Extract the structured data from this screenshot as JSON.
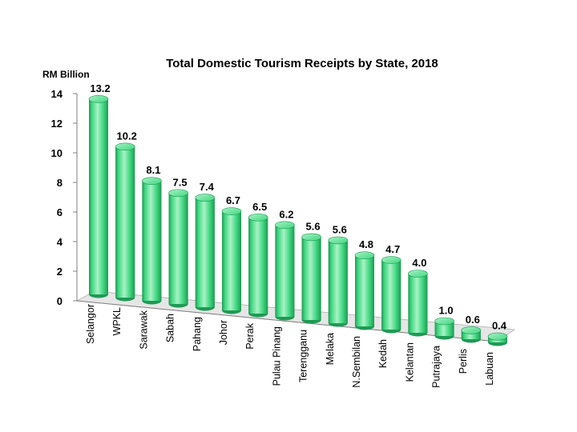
{
  "chart_data": {
    "type": "bar",
    "title": "Total Domestic Tourism Receipts by State, 2018",
    "ylabel": "RM Billion",
    "xlabel": "",
    "ylim": [
      0,
      14
    ],
    "yticks": [
      "0",
      "2",
      "4",
      "6",
      "8",
      "10",
      "12",
      "14"
    ],
    "categories": [
      "Selangor",
      "WPKL",
      "Sarawak",
      "Sabah",
      "Pahang",
      "Johor",
      "Perak",
      "Pulau Pinang",
      "Terengganu",
      "Melaka",
      "N.Sembilan",
      "Kedah",
      "Kelantan",
      "Putrajaya",
      "Perlis",
      "Labuan"
    ],
    "values": [
      13.2,
      10.2,
      8.1,
      7.5,
      7.4,
      6.7,
      6.5,
      6.2,
      5.6,
      5.6,
      4.8,
      4.7,
      4.0,
      1.0,
      0.6,
      0.4
    ],
    "labels": [
      "13.2",
      "10.2",
      "8.1",
      "7.5",
      "7.4",
      "6.7",
      "6.5",
      "6.2",
      "5.6",
      "5.6",
      "4.8",
      "4.7",
      "4.0",
      "1.0",
      "0.6",
      "0.4"
    ],
    "bar_color": "#3fd77f",
    "bar_shade_color": "#1f9a55",
    "bar_highlight_color": "#a8f2c6",
    "floor_color": "#e6e6e6",
    "grid": false,
    "legend": "none"
  }
}
